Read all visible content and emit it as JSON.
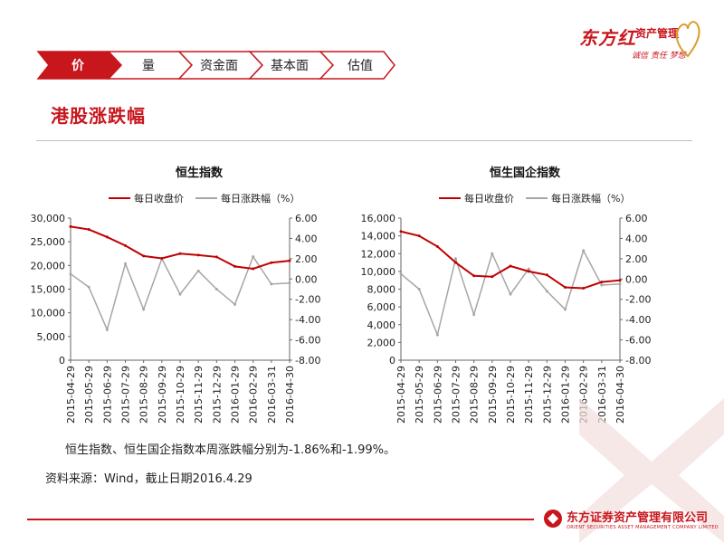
{
  "brand": {
    "name": "东方红",
    "sub": "资产管理",
    "slogan": "诚信 责任 梦想",
    "footer_name": "东方证券资产管理有限公司",
    "footer_en": "ORIENT SECURITIES ASSET MANAGEMENT COMPANY LIMITED"
  },
  "tabs": [
    {
      "label": "价",
      "active": true
    },
    {
      "label": "量",
      "active": false
    },
    {
      "label": "资金面",
      "active": false
    },
    {
      "label": "基本面",
      "active": false
    },
    {
      "label": "估值",
      "active": false
    }
  ],
  "page_title": "港股涨跌幅",
  "summary": "恒生指数、恒生国企指数本周涨跌幅分别为-1.86%和-1.99%。",
  "source": "资料来源：Wind，截止日期2016.4.29",
  "colors": {
    "accent": "#c8161d",
    "close_line": "#c00000",
    "change_line": "#a6a6a6"
  },
  "chart_data": [
    {
      "type": "line",
      "title": "恒生指数",
      "x": [
        "2015-04-29",
        "2015-05-29",
        "2015-06-29",
        "2015-07-29",
        "2015-08-29",
        "2015-09-29",
        "2015-10-29",
        "2015-11-29",
        "2015-12-29",
        "2016-01-29",
        "2016-02-29",
        "2016-03-31",
        "2016-04-30"
      ],
      "y_left_ticks": [
        "30,000",
        "25,000",
        "20,000",
        "15,000",
        "10,000",
        "5,000",
        "0"
      ],
      "y_right_ticks": [
        "6.00",
        "4.00",
        "2.00",
        "0.00",
        "-2.00",
        "-4.00",
        "-6.00",
        "-8.00"
      ],
      "ylim_left": [
        0,
        30000
      ],
      "ylim_right": [
        -8,
        6
      ],
      "legend_position": "top",
      "series": [
        {
          "name": "每日收盘价",
          "axis": "left",
          "values": [
            28200,
            27600,
            26000,
            24200,
            22000,
            21500,
            22500,
            22200,
            21800,
            19800,
            19300,
            20600,
            21000
          ]
        },
        {
          "name": "每日涨跌幅（%）",
          "axis": "right",
          "values": [
            0.5,
            -0.8,
            -5.0,
            1.5,
            -3.0,
            2.0,
            -1.5,
            0.8,
            -1.0,
            -2.5,
            2.2,
            -0.5,
            -0.4
          ]
        }
      ]
    },
    {
      "type": "line",
      "title": "恒生国企指数",
      "x": [
        "2015-04-29",
        "2015-05-29",
        "2015-06-29",
        "2015-07-29",
        "2015-08-29",
        "2015-09-29",
        "2015-10-29",
        "2015-11-29",
        "2015-12-29",
        "2016-01-29",
        "2016-02-29",
        "2016-03-31",
        "2016-04-30"
      ],
      "y_left_ticks": [
        "16,000",
        "14,000",
        "12,000",
        "10,000",
        "8,000",
        "6,000",
        "4,000",
        "2,000",
        "0"
      ],
      "y_right_ticks": [
        "6.00",
        "4.00",
        "2.00",
        "0.00",
        "-2.00",
        "-4.00",
        "-6.00",
        "-8.00"
      ],
      "ylim_left": [
        0,
        16000
      ],
      "ylim_right": [
        -8,
        6
      ],
      "legend_position": "top",
      "series": [
        {
          "name": "每日收盘价",
          "axis": "left",
          "values": [
            14500,
            14000,
            12800,
            11000,
            9500,
            9400,
            10600,
            10000,
            9600,
            8200,
            8100,
            8800,
            9000
          ]
        },
        {
          "name": "每日涨跌幅（%）",
          "axis": "right",
          "values": [
            0.5,
            -1.0,
            -5.5,
            2.0,
            -3.5,
            2.5,
            -1.5,
            1.0,
            -1.2,
            -3.0,
            2.8,
            -0.6,
            -0.5
          ]
        }
      ]
    }
  ]
}
